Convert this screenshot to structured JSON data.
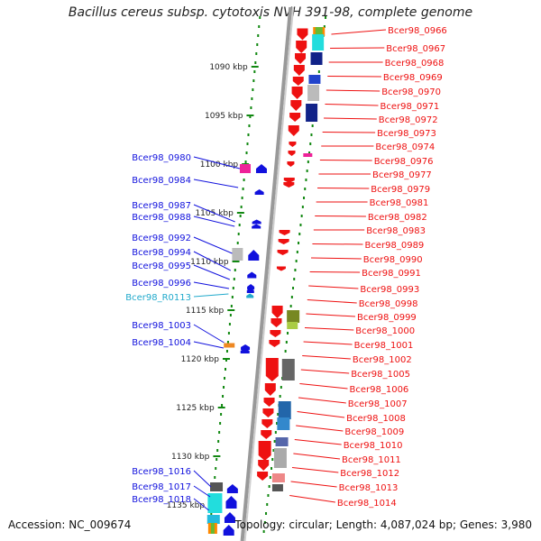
{
  "title": "Bacillus cereus subsp. cytotoxis NVH 391-98, complete genome",
  "footer": {
    "accession": "Accession: NC_009674",
    "summary": "Topology: circular; Length: 4,087,024 bp; Genes: 3,980"
  },
  "colors": {
    "minus_strand": "#ee1111",
    "plus_strand": "#1111dd",
    "rna_label": "#22aacc",
    "backbone": "#999999",
    "tick": "#118811"
  },
  "scale": {
    "ticks": [
      "1090 kbp",
      "1095 kbp",
      "1100 kbp",
      "1105 kbp",
      "1110 kbp",
      "1115 kbp",
      "1120 kbp",
      "1125 kbp",
      "1130 kbp",
      "1135 kbp"
    ]
  },
  "genes": {
    "minus": [
      "Bcer98_0966",
      "Bcer98_0967",
      "Bcer98_0968",
      "Bcer98_0969",
      "Bcer98_0970",
      "Bcer98_0971",
      "Bcer98_0972",
      "Bcer98_0973",
      "Bcer98_0974",
      "Bcer98_0976",
      "Bcer98_0977",
      "Bcer98_0979",
      "Bcer98_0981",
      "Bcer98_0982",
      "Bcer98_0983",
      "Bcer98_0989",
      "Bcer98_0990",
      "Bcer98_0991",
      "Bcer98_0993",
      "Bcer98_0998",
      "Bcer98_0999",
      "Bcer98_1000",
      "Bcer98_1001",
      "Bcer98_1002",
      "Bcer98_1005",
      "Bcer98_1006",
      "Bcer98_1007",
      "Bcer98_1008",
      "Bcer98_1009",
      "Bcer98_1010",
      "Bcer98_1011",
      "Bcer98_1012",
      "Bcer98_1013",
      "Bcer98_1014"
    ],
    "plus": [
      "Bcer98_0980",
      "Bcer98_0984",
      "Bcer98_0987",
      "Bcer98_0988",
      "Bcer98_0992",
      "Bcer98_0994",
      "Bcer98_0995",
      "Bcer98_0996",
      "Bcer98_R0113",
      "Bcer98_1003",
      "Bcer98_1004",
      "Bcer98_1016",
      "Bcer98_1017",
      "Bcer98_1018"
    ]
  }
}
